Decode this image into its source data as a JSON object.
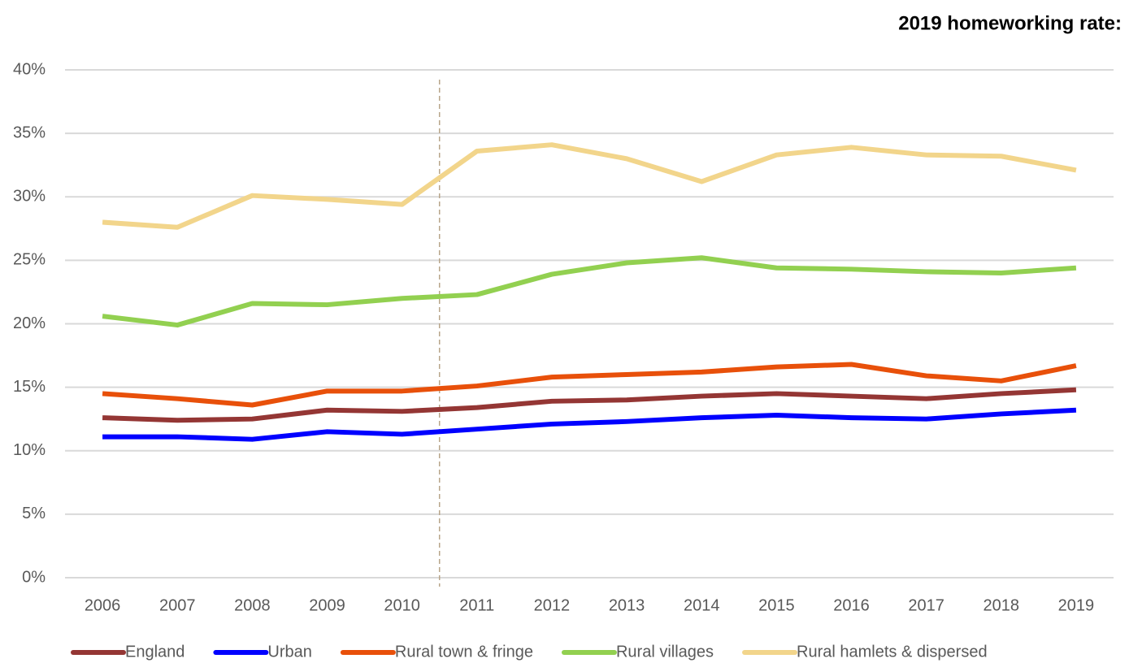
{
  "chart_data": {
    "type": "line",
    "annotation": "2019 homeworking rate:",
    "categories": [
      "2006",
      "2007",
      "2008",
      "2009",
      "2010",
      "2011",
      "2012",
      "2013",
      "2014",
      "2015",
      "2016",
      "2017",
      "2018",
      "2019"
    ],
    "series": [
      {
        "name": "England",
        "color": "#943634",
        "values": [
          12.6,
          12.4,
          12.5,
          13.2,
          13.1,
          13.4,
          13.9,
          14.0,
          14.3,
          14.5,
          14.3,
          14.1,
          14.5,
          14.8
        ]
      },
      {
        "name": "Urban",
        "color": "#0000ff",
        "values": [
          11.1,
          11.1,
          10.9,
          11.5,
          11.3,
          11.7,
          12.1,
          12.3,
          12.6,
          12.8,
          12.6,
          12.5,
          12.9,
          13.2
        ]
      },
      {
        "name": "Rural town & fringe",
        "color": "#e8500a",
        "values": [
          14.5,
          14.1,
          13.6,
          14.7,
          14.7,
          15.1,
          15.8,
          16.0,
          16.2,
          16.6,
          16.8,
          15.9,
          15.5,
          16.7
        ]
      },
      {
        "name": "Rural villages",
        "color": "#92d050",
        "values": [
          20.6,
          19.9,
          21.6,
          21.5,
          22.0,
          22.3,
          23.9,
          24.8,
          25.2,
          24.4,
          24.3,
          24.1,
          24.0,
          24.4
        ]
      },
      {
        "name": "Rural hamlets & dispersed",
        "color": "#f2d58b",
        "values": [
          28.0,
          27.6,
          30.1,
          29.8,
          29.4,
          33.6,
          34.1,
          33.0,
          31.2,
          33.3,
          33.9,
          33.3,
          33.2,
          32.1
        ]
      }
    ],
    "ylim": [
      0,
      40
    ],
    "yticks": [
      {
        "value": 0,
        "label": "0%"
      },
      {
        "value": 5,
        "label": "5%"
      },
      {
        "value": 10,
        "label": "10%"
      },
      {
        "value": 15,
        "label": "15%"
      },
      {
        "value": 20,
        "label": "20%"
      },
      {
        "value": 25,
        "label": "25%"
      },
      {
        "value": 30,
        "label": "30%"
      },
      {
        "value": 35,
        "label": "35%"
      },
      {
        "value": 40,
        "label": "40%"
      }
    ],
    "grid": true
  }
}
